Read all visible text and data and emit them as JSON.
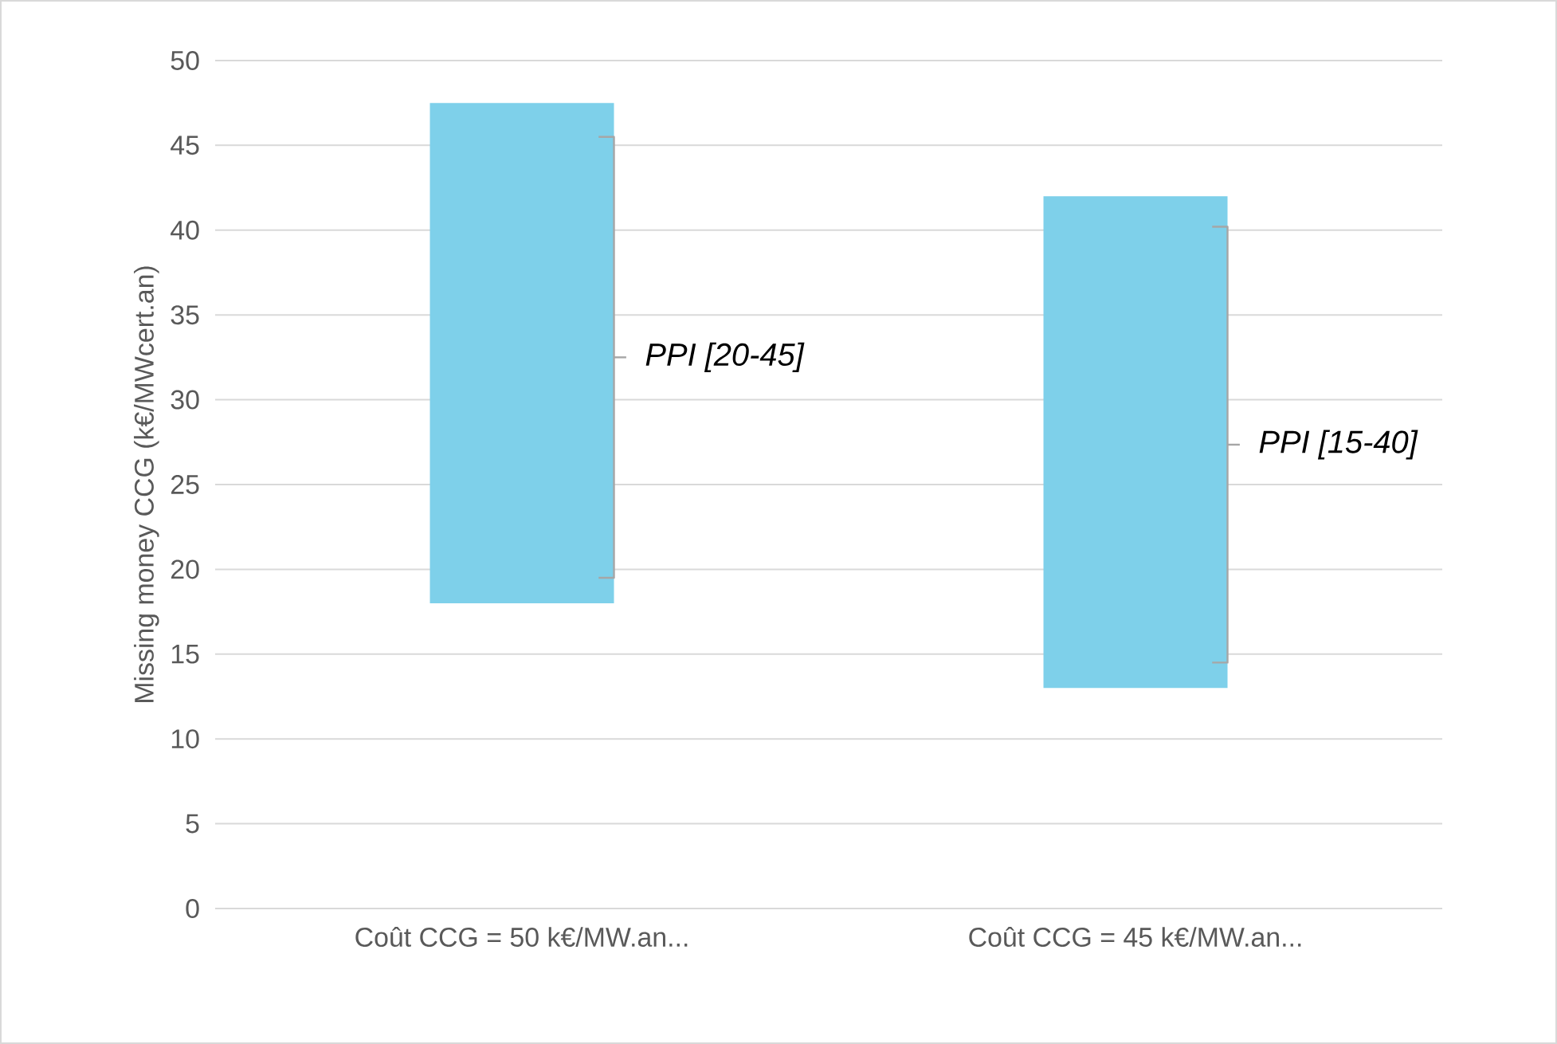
{
  "chart_data": {
    "type": "bar",
    "categories": [
      "Coût CCG = 50 k€/MW.an...",
      "Coût CCG = 45 k€/MW.an..."
    ],
    "base": [
      18,
      13
    ],
    "values": [
      29.5,
      29
    ],
    "color": "#7ed0ea",
    "errors": [
      [
        19.5,
        45.5
      ],
      [
        14.5,
        40.2
      ]
    ],
    "ylabel": "Missing money CCG (k€/MWcert.an)",
    "ylim": [
      0,
      50
    ],
    "yticks": [
      0,
      5,
      10,
      15,
      20,
      25,
      30,
      35,
      40,
      45,
      50
    ],
    "grid": "y",
    "annotations": [
      "*PPI [20-45]*",
      "*PPI [15-40]*"
    ]
  }
}
